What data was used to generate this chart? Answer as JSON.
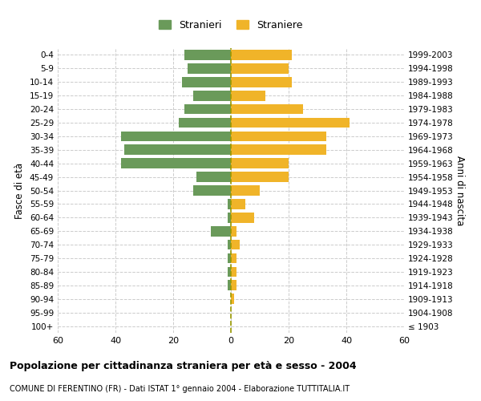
{
  "age_groups": [
    "100+",
    "95-99",
    "90-94",
    "85-89",
    "80-84",
    "75-79",
    "70-74",
    "65-69",
    "60-64",
    "55-59",
    "50-54",
    "45-49",
    "40-44",
    "35-39",
    "30-34",
    "25-29",
    "20-24",
    "15-19",
    "10-14",
    "5-9",
    "0-4"
  ],
  "birth_years": [
    "≤ 1903",
    "1904-1908",
    "1909-1913",
    "1914-1918",
    "1919-1923",
    "1924-1928",
    "1929-1933",
    "1934-1938",
    "1939-1943",
    "1944-1948",
    "1949-1953",
    "1954-1958",
    "1959-1963",
    "1964-1968",
    "1969-1973",
    "1974-1978",
    "1979-1983",
    "1984-1988",
    "1989-1993",
    "1994-1998",
    "1999-2003"
  ],
  "males": [
    0,
    0,
    0,
    1,
    1,
    1,
    1,
    7,
    1,
    1,
    13,
    12,
    38,
    37,
    38,
    18,
    16,
    13,
    17,
    15,
    16
  ],
  "females": [
    0,
    0,
    1,
    2,
    2,
    2,
    3,
    2,
    8,
    5,
    10,
    20,
    20,
    33,
    33,
    41,
    25,
    12,
    21,
    20,
    21
  ],
  "male_color": "#6a9a5a",
  "female_color": "#f0b429",
  "grid_color": "#cccccc",
  "center_line_color": "#999900",
  "title": "Popolazione per cittadinanza straniera per età e sesso - 2004",
  "subtitle": "COMUNE DI FERENTINO (FR) - Dati ISTAT 1° gennaio 2004 - Elaborazione TUTTITALIA.IT",
  "ylabel_left": "Fasce di età",
  "ylabel_right": "Anni di nascita",
  "xlim": 60,
  "legend_labels": [
    "Stranieri",
    "Straniere"
  ],
  "background_color": "#ffffff"
}
